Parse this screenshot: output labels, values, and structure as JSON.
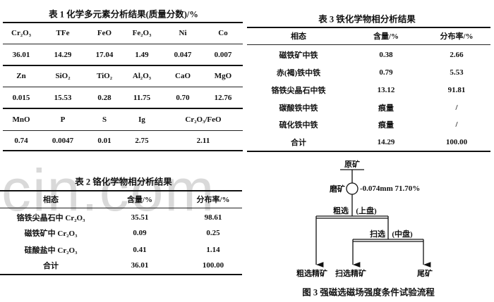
{
  "watermark": "cin.com",
  "table1": {
    "title": "表 1   化学多元素分析结果(质量分数)/%",
    "rows": [
      {
        "headers": [
          "Cr₂O₃",
          "TFe",
          "FeO",
          "Fe₂O₃",
          "Ni",
          "Co"
        ],
        "values": [
          "36.01",
          "14.29",
          "17.04",
          "1.49",
          "0.047",
          "0.007"
        ]
      },
      {
        "headers": [
          "Zn",
          "SiO₂",
          "TiO₂",
          "Al₂O₃",
          "CaO",
          "MgO"
        ],
        "values": [
          "0.015",
          "15.53",
          "0.28",
          "11.75",
          "0.70",
          "12.76"
        ]
      },
      {
        "headers": [
          "MnO",
          "P",
          "S",
          "Ig",
          "Cr₂O₃/FeO"
        ],
        "values": [
          "0.74",
          "0.0047",
          "0.01",
          "2.75",
          "2.11"
        ]
      }
    ]
  },
  "table2": {
    "title": "表 2   铬化学物相分析结果",
    "columns": [
      "相态",
      "含量/%",
      "分布率/%"
    ],
    "rows": [
      [
        "铬铁尖晶石中 Cr₂O₃",
        "35.51",
        "98.61"
      ],
      [
        "磁铁矿中 Cr₂O₃",
        "0.09",
        "0.25"
      ],
      [
        "硅酸盐中 Cr₂O₃",
        "0.41",
        "1.14"
      ],
      [
        "合计",
        "36.01",
        "100.00"
      ]
    ]
  },
  "table3": {
    "title": "表 3    铁化学物相分析结果",
    "columns": [
      "相态",
      "含量/%",
      "分布率/%"
    ],
    "rows": [
      [
        "磁铁矿中铁",
        "0.38",
        "2.66"
      ],
      [
        "赤(褐)铁中铁",
        "0.79",
        "5.53"
      ],
      [
        "铬铁尖晶石中铁",
        "13.12",
        "91.81"
      ],
      [
        "碳酸铁中铁",
        "痕量",
        "/"
      ],
      [
        "硫化铁中铁",
        "痕量",
        "/"
      ],
      [
        "合计",
        "14.29",
        "100.00"
      ]
    ]
  },
  "figure3": {
    "raw_ore": "原矿",
    "grinding": "磨矿",
    "grind_spec": "-0.074mm 71.70%",
    "rougher": "粗选",
    "rougher_pos": "(上盘)",
    "scavenger": "扫选",
    "scavenger_pos": "(中盘)",
    "rougher_conc": "粗选精矿",
    "scavenger_conc": "扫选精矿",
    "tailings": "尾矿",
    "caption": "图 3   强磁选磁场强度条件试验流程"
  }
}
